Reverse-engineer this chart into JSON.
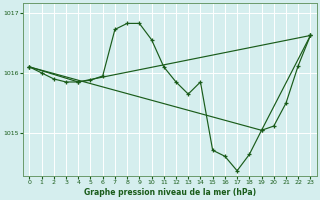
{
  "title": "Graphe pression niveau de la mer (hPa)",
  "bg_color": "#d5eeee",
  "grid_color": "#ffffff",
  "line_color": "#1a5c1a",
  "ylim": [
    1014.3,
    1017.15
  ],
  "yticks": [
    1015.0,
    1016.0,
    1017.0
  ],
  "xlim": [
    -0.5,
    23.5
  ],
  "xticks": [
    0,
    1,
    2,
    3,
    4,
    5,
    6,
    7,
    8,
    9,
    10,
    11,
    12,
    13,
    14,
    15,
    16,
    17,
    18,
    19,
    20,
    21,
    22,
    23
  ],
  "line_main": {
    "x": [
      0,
      1,
      2,
      3,
      4,
      5,
      6,
      7,
      8,
      9,
      10,
      11,
      12,
      13,
      14,
      15,
      16,
      17,
      18,
      19,
      20,
      21,
      22,
      23
    ],
    "y": [
      1016.1,
      1016.0,
      1015.9,
      1015.85,
      1015.85,
      1015.88,
      1015.95,
      1016.72,
      1016.82,
      1016.82,
      1016.55,
      1016.1,
      1015.85,
      1015.65,
      1015.85,
      1014.72,
      1014.62,
      1014.38,
      1014.65,
      1015.05,
      1015.12,
      1015.5,
      1016.12,
      1016.62
    ]
  },
  "line_diag1": {
    "x": [
      0,
      4,
      23
    ],
    "y": [
      1016.1,
      1015.85,
      1016.62
    ]
  },
  "line_diag2": {
    "x": [
      0,
      19,
      23
    ],
    "y": [
      1016.1,
      1015.05,
      1016.62
    ]
  }
}
